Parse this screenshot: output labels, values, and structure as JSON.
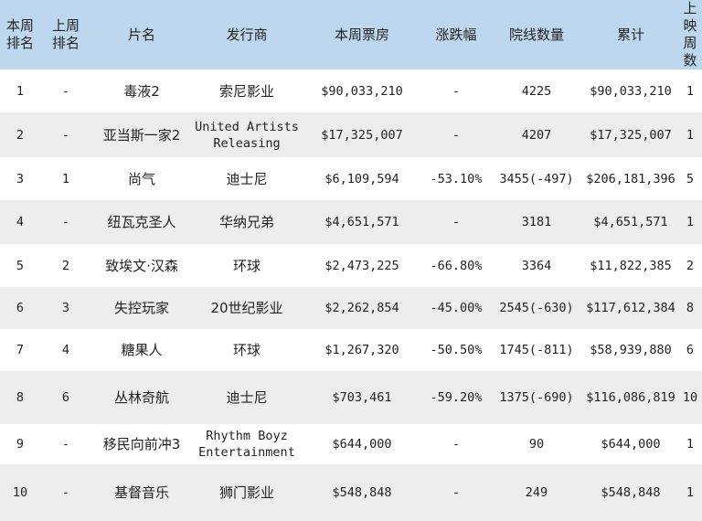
{
  "table": {
    "headers": [
      "本周\n排名",
      "上周\n排名",
      "片名",
      "发行商",
      "本周票房",
      "涨跌幅",
      "院线数量",
      "累计",
      "上映\n周数"
    ],
    "rows": [
      [
        "1",
        "-",
        "毒液2",
        "索尼影业",
        "$90,033,210",
        "-",
        "4225",
        "$90,033,210",
        "1"
      ],
      [
        "2",
        "-",
        "亚当斯一家2",
        "United Artists\nReleasing",
        "$17,325,007",
        "-",
        "4207",
        "$17,325,007",
        "1"
      ],
      [
        "3",
        "1",
        "尚气",
        "迪士尼",
        "$6,109,594",
        "-53.10%",
        "3455(-497)",
        "$206,181,396",
        "5"
      ],
      [
        "4",
        "-",
        "纽瓦克圣人",
        "华纳兄弟",
        "$4,651,571",
        "-",
        "3181",
        "$4,651,571",
        "1"
      ],
      [
        "5",
        "2",
        "致埃文·汉森",
        "环球",
        "$2,473,225",
        "-66.80%",
        "3364",
        "$11,822,385",
        "2"
      ],
      [
        "6",
        "3",
        "失控玩家",
        "20世纪影业",
        "$2,262,854",
        "-45.00%",
        "2545(-630)",
        "$117,612,384",
        "8"
      ],
      [
        "7",
        "4",
        "糖果人",
        "环球",
        "$1,267,320",
        "-50.50%",
        "1745(-811)",
        "$58,939,880",
        "6"
      ],
      [
        "8",
        "6",
        "丛林奇航",
        "迪士尼",
        "$703,461",
        "-59.20%",
        "1375(-690)",
        "$116,086,819",
        "10"
      ],
      [
        "9",
        "-",
        "移民向前冲3",
        "Rhythm Boyz\nEntertainment",
        "$644,000",
        "-",
        "90",
        "$644,000",
        "1"
      ],
      [
        "10",
        "-",
        "基督音乐",
        "狮门影业",
        "$548,848",
        "-",
        "249",
        "$548,848",
        "1"
      ]
    ]
  }
}
